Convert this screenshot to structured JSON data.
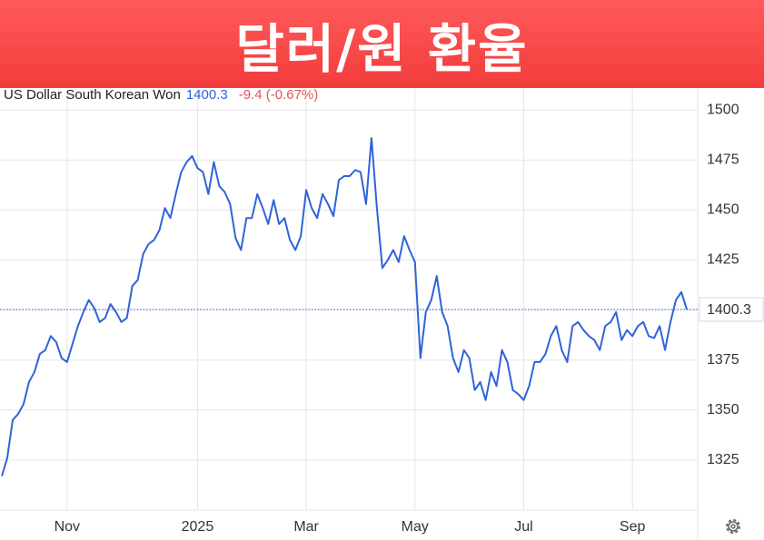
{
  "banner": {
    "title": "달러/원 환율"
  },
  "chart_data": {
    "type": "line",
    "price": "1400.3",
    "change": "-9.4 (-0.67%)",
    "categories": [
      null,
      null,
      null,
      null,
      null,
      null,
      null,
      null,
      null,
      null,
      null,
      null,
      "Nov",
      null,
      null,
      null,
      null,
      null,
      null,
      null,
      null,
      null,
      null,
      null,
      null,
      null,
      null,
      null,
      null,
      null,
      null,
      null,
      null,
      null,
      null,
      null,
      "2025",
      null,
      null,
      null,
      null,
      null,
      null,
      null,
      null,
      null,
      null,
      null,
      null,
      null,
      null,
      null,
      null,
      null,
      null,
      null,
      "Mar",
      null,
      null,
      null,
      null,
      null,
      null,
      null,
      null,
      null,
      null,
      null,
      null,
      null,
      null,
      null,
      null,
      null,
      null,
      null,
      "May",
      null,
      null,
      null,
      null,
      null,
      null,
      null,
      null,
      null,
      null,
      null,
      null,
      null,
      null,
      null,
      null,
      null,
      null,
      null,
      "Jul",
      null,
      null,
      null,
      null,
      null,
      null,
      null,
      null,
      null,
      null,
      null,
      null,
      null,
      null,
      null,
      null,
      null,
      null,
      null,
      "Sep",
      null,
      null,
      null,
      null,
      null,
      null,
      null,
      null,
      null,
      null
    ],
    "series": [
      {
        "name": "US Dollar South Korean Won",
        "color": "#2f63d8",
        "values": [
          1317,
          1326,
          1345,
          1348,
          1353,
          1364,
          1369,
          1378,
          1380,
          1387,
          1384,
          1376,
          1374,
          1383,
          1392,
          1399,
          1405,
          1401,
          1394,
          1396,
          1403,
          1399,
          1394,
          1396,
          1412,
          1415,
          1428,
          1433,
          1435,
          1440,
          1451,
          1446,
          1458,
          1469,
          1474,
          1477,
          1471,
          1469,
          1458,
          1474,
          1462,
          1459,
          1453,
          1436,
          1430,
          1446,
          1446,
          1458,
          1451,
          1443,
          1455,
          1443,
          1446,
          1435,
          1430,
          1437,
          1460,
          1451,
          1446,
          1458,
          1453,
          1447,
          1465,
          1467,
          1467,
          1470,
          1469,
          1453,
          1486,
          1451,
          1421,
          1425,
          1430,
          1424,
          1437,
          1430,
          1424,
          1376,
          1399,
          1405,
          1417,
          1399,
          1392,
          1376,
          1369,
          1380,
          1376,
          1360,
          1364,
          1355,
          1369,
          1362,
          1380,
          1374,
          1360,
          1358,
          1355,
          1362,
          1374,
          1374,
          1378,
          1387,
          1392,
          1380,
          1374,
          1392,
          1394,
          1390,
          1387,
          1385,
          1380,
          1392,
          1394,
          1399,
          1385,
          1390,
          1387,
          1392,
          1394,
          1387,
          1386,
          1392,
          1380,
          1394,
          1405,
          1409,
          1400.3
        ]
      }
    ],
    "ylim": [
      1300,
      1511
    ],
    "yticks": [
      1325,
      1350,
      1375,
      1400,
      1425,
      1450,
      1475,
      1500
    ],
    "grid": true
  }
}
